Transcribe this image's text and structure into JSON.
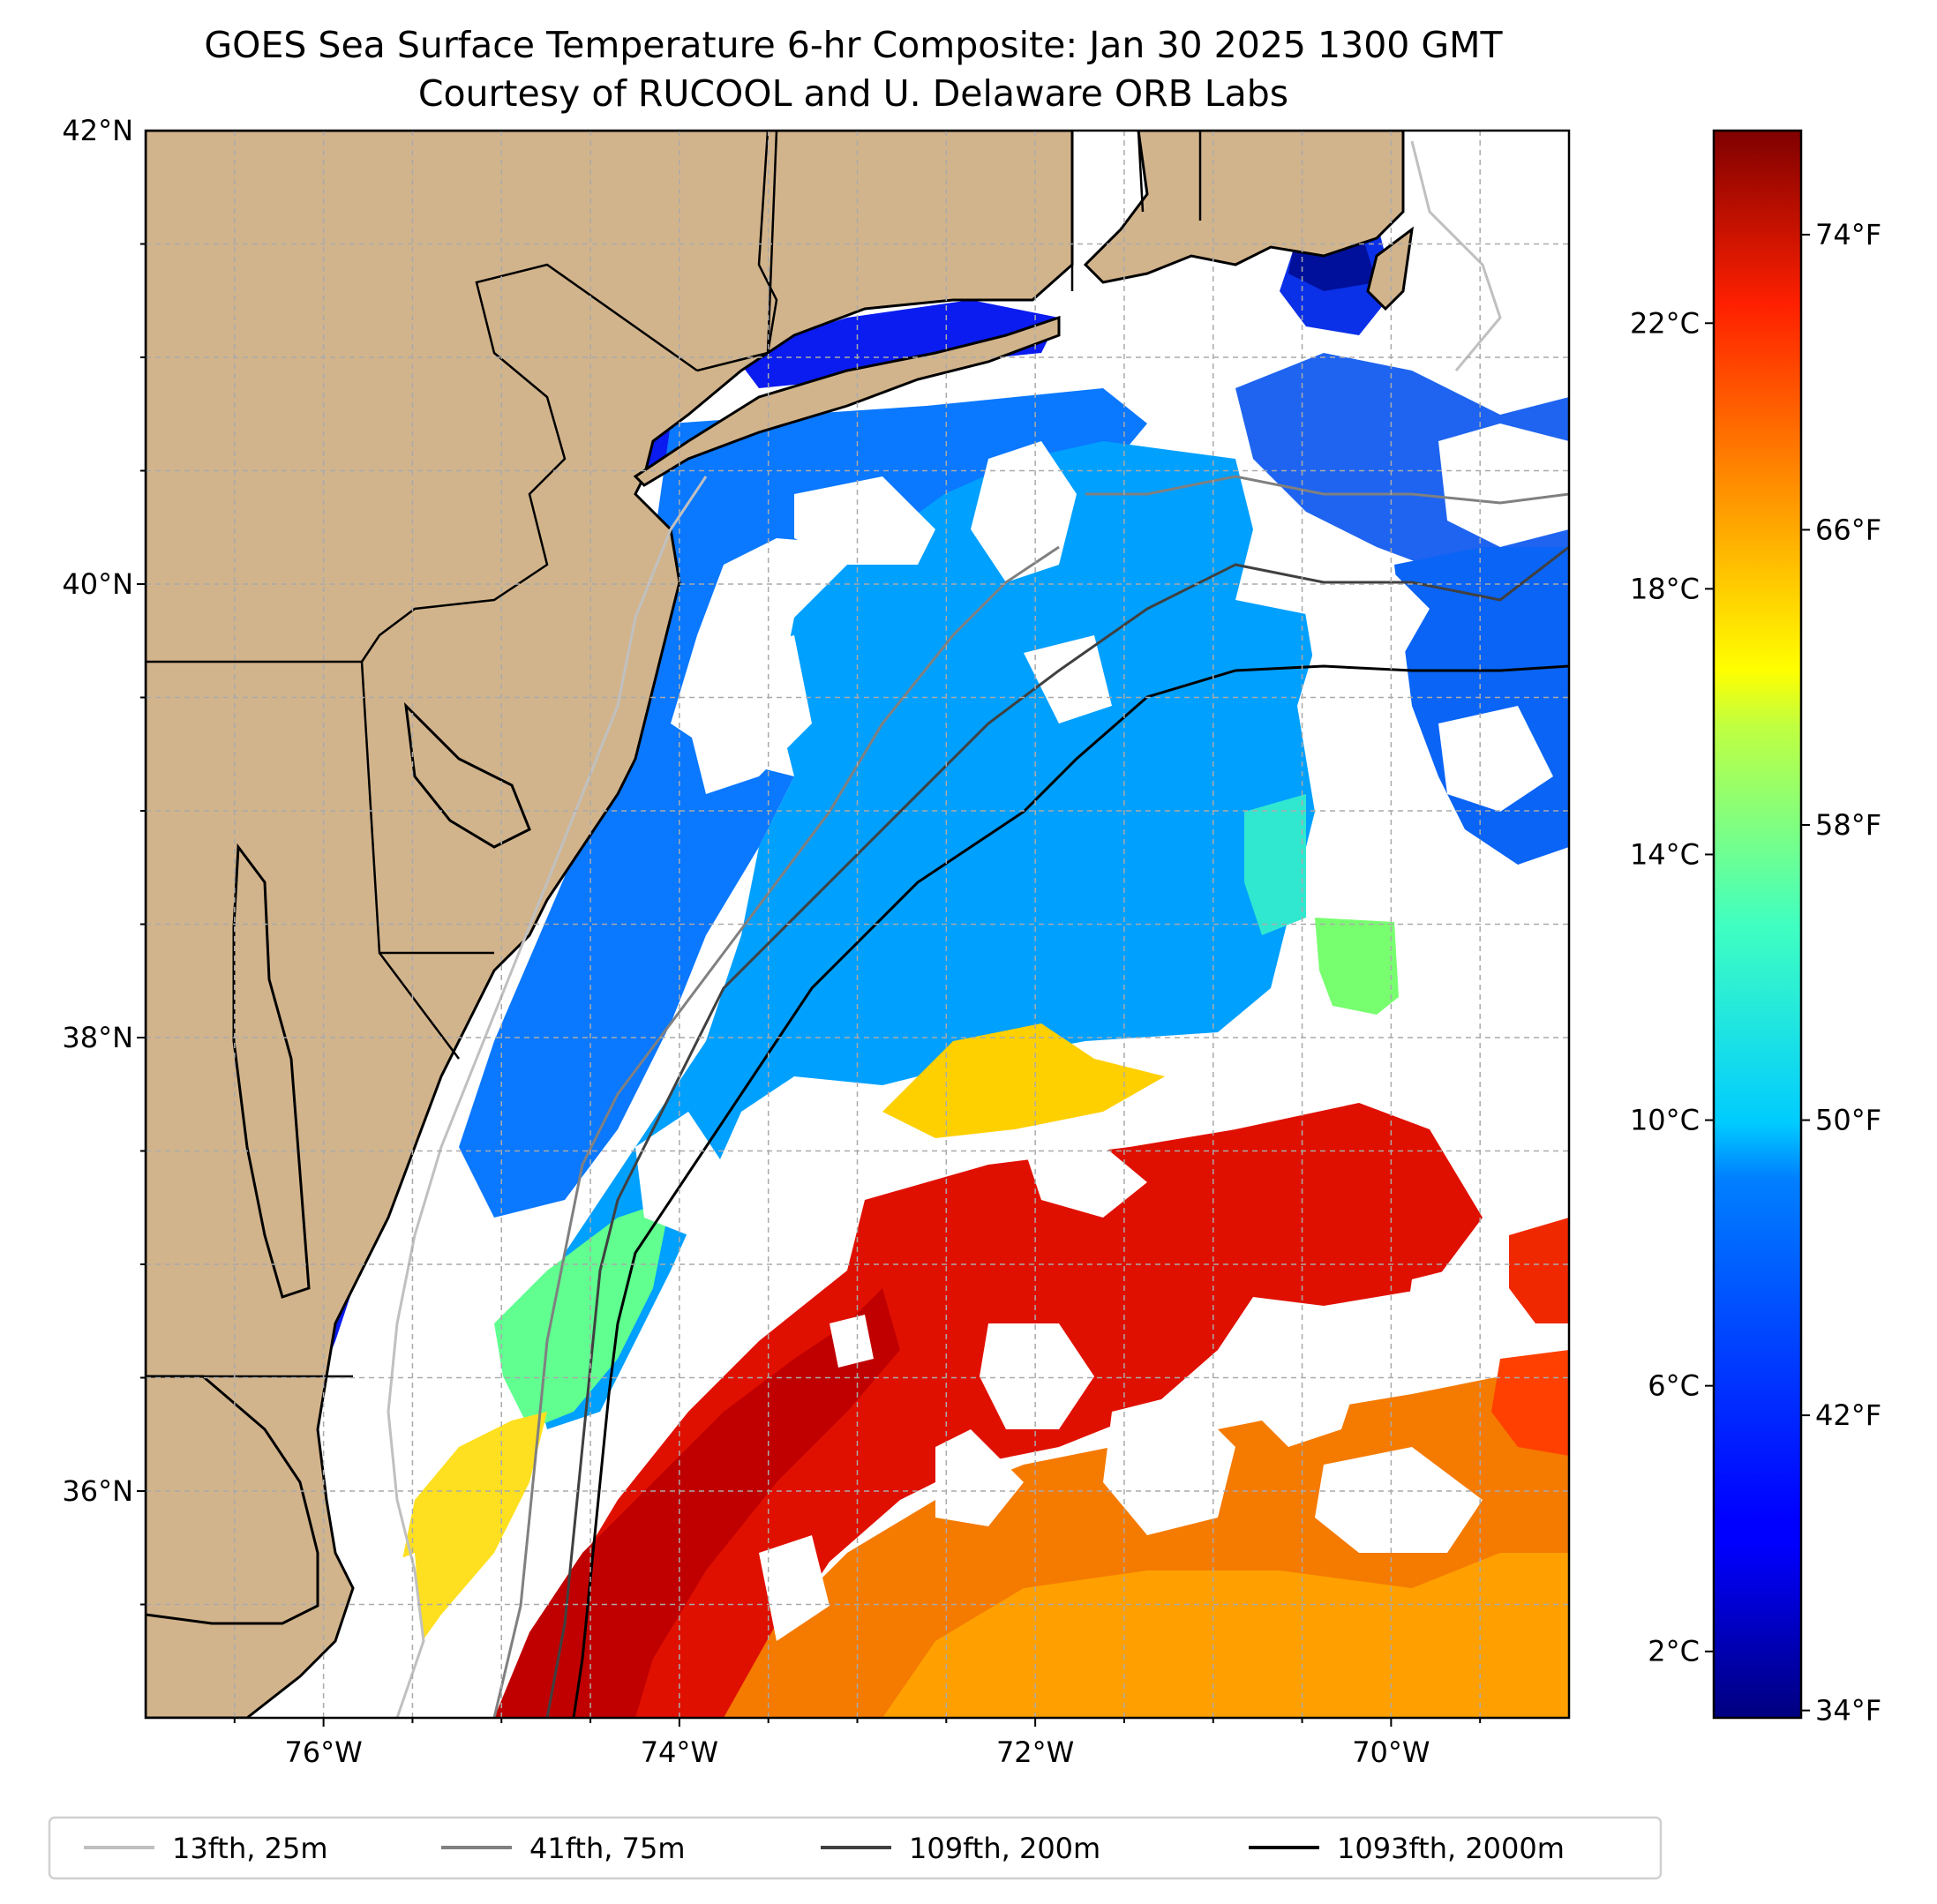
{
  "title": "GOES Sea Surface Temperature 6-hr Composite: Jan 30 2025 1300 GMT",
  "subtitle": "Courtesy of RUCOOL and U. Delaware ORB Labs",
  "map": {
    "lon_range": [
      -77.0,
      -69.0
    ],
    "lat_range": [
      35.0,
      42.0
    ],
    "lon_ticks": [
      {
        "value": -76,
        "label": "76°W"
      },
      {
        "value": -74,
        "label": "74°W"
      },
      {
        "value": -72,
        "label": "72°W"
      },
      {
        "value": -70,
        "label": "70°W"
      }
    ],
    "lat_ticks": [
      {
        "value": 42,
        "label": "42°N"
      },
      {
        "value": 40,
        "label": "40°N"
      },
      {
        "value": 38,
        "label": "38°N"
      },
      {
        "value": 36,
        "label": "36°N"
      }
    ],
    "grid": true,
    "land_color": "#d2b48c",
    "no_data_color": "#ffffff"
  },
  "colorbar": {
    "colormap": "jet",
    "range_c": [
      1.0,
      24.9
    ],
    "celsius_ticks": [
      {
        "value": 2,
        "label": "2°C"
      },
      {
        "value": 6,
        "label": "6°C"
      },
      {
        "value": 10,
        "label": "10°C"
      },
      {
        "value": 14,
        "label": "14°C"
      },
      {
        "value": 18,
        "label": "18°C"
      },
      {
        "value": 22,
        "label": "22°C"
      }
    ],
    "fahrenheit_ticks": [
      {
        "value": 34,
        "label": "34°F"
      },
      {
        "value": 42,
        "label": "42°F"
      },
      {
        "value": 50,
        "label": "50°F"
      },
      {
        "value": 58,
        "label": "58°F"
      },
      {
        "value": 66,
        "label": "66°F"
      },
      {
        "value": 74,
        "label": "74°F"
      }
    ]
  },
  "legend": {
    "placement": "bottom",
    "entries": [
      {
        "label": "13fth, 25m",
        "color": "#c0c0c0"
      },
      {
        "label": "41fth, 75m",
        "color": "#808080"
      },
      {
        "label": "109fth, 200m",
        "color": "#404040"
      },
      {
        "label": "1093fth, 2000m",
        "color": "#000000"
      }
    ]
  }
}
